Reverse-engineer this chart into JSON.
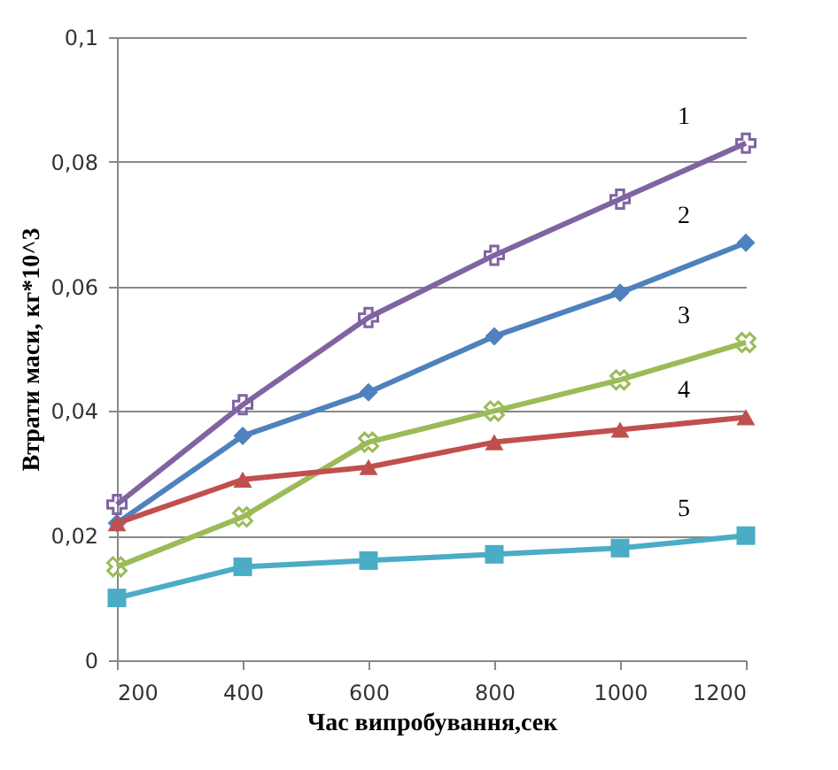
{
  "chart_data": {
    "type": "line",
    "xlabel": "Час випробування,сек",
    "ylabel": "Втрати маси, кг*10^3",
    "x": [
      200,
      400,
      600,
      800,
      1000,
      1200
    ],
    "xlim": [
      200,
      1200
    ],
    "xticks": [
      200,
      400,
      600,
      800,
      1000,
      1200
    ],
    "ylim": [
      0,
      0.1
    ],
    "yticks": [
      {
        "value": 0,
        "label": "0"
      },
      {
        "value": 0.02,
        "label": "0,02"
      },
      {
        "value": 0.04,
        "label": "0,04"
      },
      {
        "value": 0.06,
        "label": "0,06"
      },
      {
        "value": 0.08,
        "label": "0,08"
      },
      {
        "value": 0.1,
        "label": "0,1"
      }
    ],
    "grid": "y",
    "line_style": "solid",
    "series": [
      {
        "name": "1",
        "color": "#8064a2",
        "marker": "cross",
        "values": [
          0.025,
          0.041,
          0.055,
          0.065,
          0.074,
          0.083
        ]
      },
      {
        "name": "2",
        "color": "#4f81bd",
        "marker": "diamond",
        "values": [
          0.022,
          0.036,
          0.043,
          0.052,
          0.059,
          0.067
        ]
      },
      {
        "name": "3",
        "color": "#9bbb59",
        "marker": "cross",
        "values": [
          0.015,
          0.023,
          0.035,
          0.04,
          0.045,
          0.051
        ]
      },
      {
        "name": "4",
        "color": "#c0504d",
        "marker": "triangle",
        "values": [
          0.022,
          0.029,
          0.031,
          0.035,
          0.037,
          0.039
        ]
      },
      {
        "name": "5",
        "color": "#4bacc6",
        "marker": "square",
        "values": [
          0.01,
          0.015,
          0.016,
          0.017,
          0.018,
          0.02
        ]
      }
    ]
  }
}
